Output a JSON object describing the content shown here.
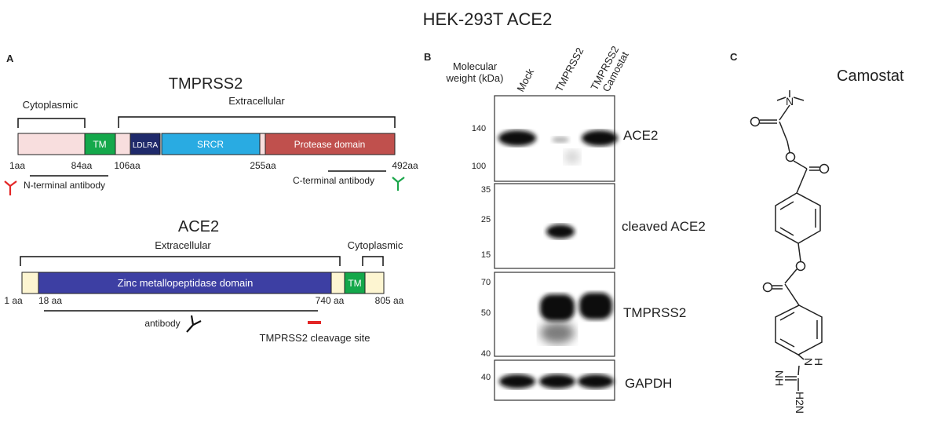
{
  "figure_title": "HEK-293T ACE2",
  "panel_a": {
    "label": "A",
    "tmprss2": {
      "title": "TMPRSS2",
      "cytoplasmic_label": "Cytoplasmic",
      "extracellular_label": "Extracellular",
      "domains": {
        "tm": "TM",
        "ldlra": "LDLRA",
        "srcr": "SRCR",
        "protease": "Protease domain"
      },
      "positions": {
        "p1": "1aa",
        "p84": "84aa",
        "p106": "106aa",
        "p255": "255aa",
        "p492": "492aa"
      },
      "n_antibody": "N-terminal  antibody",
      "c_antibody": "C-terminal antibody"
    },
    "ace2": {
      "title": "ACE2",
      "extracellular_label": "Extracellular",
      "cytoplasmic_label": "Cytoplasmic",
      "domains": {
        "zinc": "Zinc metallopeptidase domain",
        "tm": "TM"
      },
      "positions": {
        "p1": "1 aa",
        "p18": "18 aa",
        "p740": "740 aa",
        "p805": "805 aa"
      },
      "antibody": "antibody",
      "cleavage_site": "TMPRSS2 cleavage site"
    },
    "colors": {
      "light_pink": "#f8dede",
      "tm_green": "#14a84b",
      "ldlra_navy": "#1f2a6b",
      "srcr_blue": "#29abe2",
      "protease_red": "#c0504d",
      "light_yellow": "#fdf5d1",
      "zinc_blue": "#3d3fa3",
      "red_mark": "#e32626",
      "green_mark": "#1aa64a"
    }
  },
  "panel_b": {
    "label": "B",
    "mw_header": "Molecular weight (kDa)",
    "mw_line1": "Molecular",
    "mw_line2": "weight (kDa)",
    "lanes": [
      "Mock",
      "TMPRSS2",
      "TMPRSS2 Camostat"
    ],
    "lane3_line1": "TMPRSS2",
    "lane3_line2": "Camostat",
    "blots": [
      {
        "name": "ACE2",
        "markers": [
          "140",
          "100"
        ]
      },
      {
        "name": "cleaved ACE2",
        "markers": [
          "35",
          "25",
          "15"
        ]
      },
      {
        "name": "TMPRSS2",
        "markers": [
          "70",
          "50",
          "40"
        ]
      },
      {
        "name": "GAPDH",
        "markers": [
          "40"
        ]
      }
    ]
  },
  "panel_c": {
    "label": "C",
    "compound": "Camostat",
    "atoms": {
      "n": "N",
      "o": "O",
      "h": "H",
      "nh": "NH",
      "h2n": "H2N"
    }
  }
}
